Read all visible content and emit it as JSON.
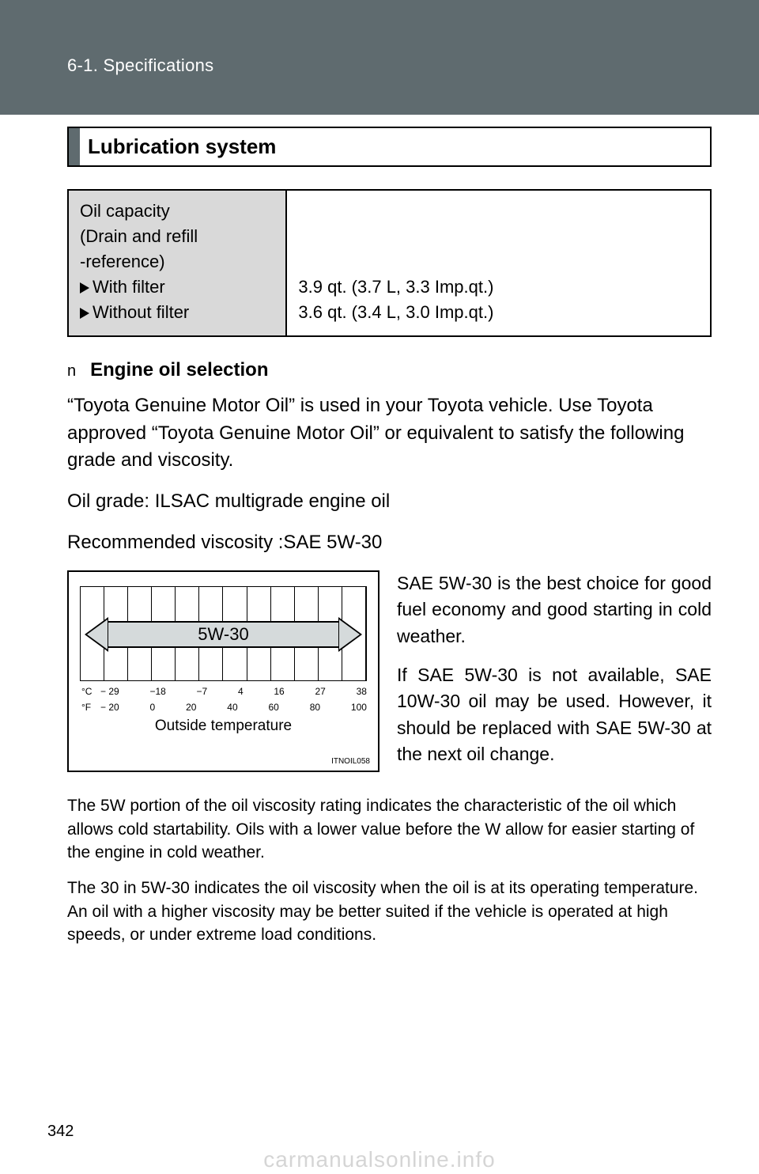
{
  "header": {
    "breadcrumb": "6-1. Specifications"
  },
  "section": {
    "title": "Lubrication system"
  },
  "spec": {
    "label_lines": [
      "Oil capacity",
      "(Drain and refill",
      "-reference)"
    ],
    "items": [
      {
        "name": "With filter",
        "value": "3.9 qt. (3.7 L, 3.3 Imp.qt.)"
      },
      {
        "name": "Without filter",
        "value": "3.6 qt. (3.4 L, 3.0 Imp.qt.)"
      }
    ]
  },
  "subheading": {
    "marker": "n",
    "text": "Engine oil selection"
  },
  "paragraphs": {
    "intro": "“Toyota Genuine Motor Oil” is used in your Toyota vehicle. Use Toy­ota approved “Toyota Genuine Motor Oil” or equivalent to satisfy the following grade and viscosity.",
    "grade": "Oil grade: ILSAC multigrade engine oil",
    "viscosity": "Recommended viscosity :SAE 5W-30",
    "right1": "SAE 5W-30 is the best choice for good fuel economy and good starting in cold weather.",
    "right2": "If SAE 5W-30 is not available, SAE 10W-30 oil may be used. However, it should be replaced with SAE 5W-30 at the next oil change.",
    "foot1": "The 5W portion of the oil viscosity rating indicates the characteristic of the oil which allows cold startability. Oils with a lower value before the W allow for easier starting of the engine in cold weather.",
    "foot2": "The 30 in 5W-30 indicates the oil viscosity when the oil is at its operating temperature. An oil with a higher viscosity may be better suited if the vehi­cle is operated at high speeds, or under extreme load conditions."
  },
  "chart": {
    "label": "5W-30",
    "grid_cols": 12,
    "c_ticks": [
      "− 29",
      "−18",
      "−7",
      "4",
      "16",
      "27",
      "38"
    ],
    "f_ticks": [
      "− 20",
      "0",
      "20",
      "40",
      "60",
      "80",
      "100"
    ],
    "c_unit": "°C",
    "f_unit": "°F",
    "caption": "Outside temperature",
    "code": "ITNOIL058"
  },
  "footer": {
    "page_number": "342",
    "watermark": "carmanualsonline.info"
  }
}
